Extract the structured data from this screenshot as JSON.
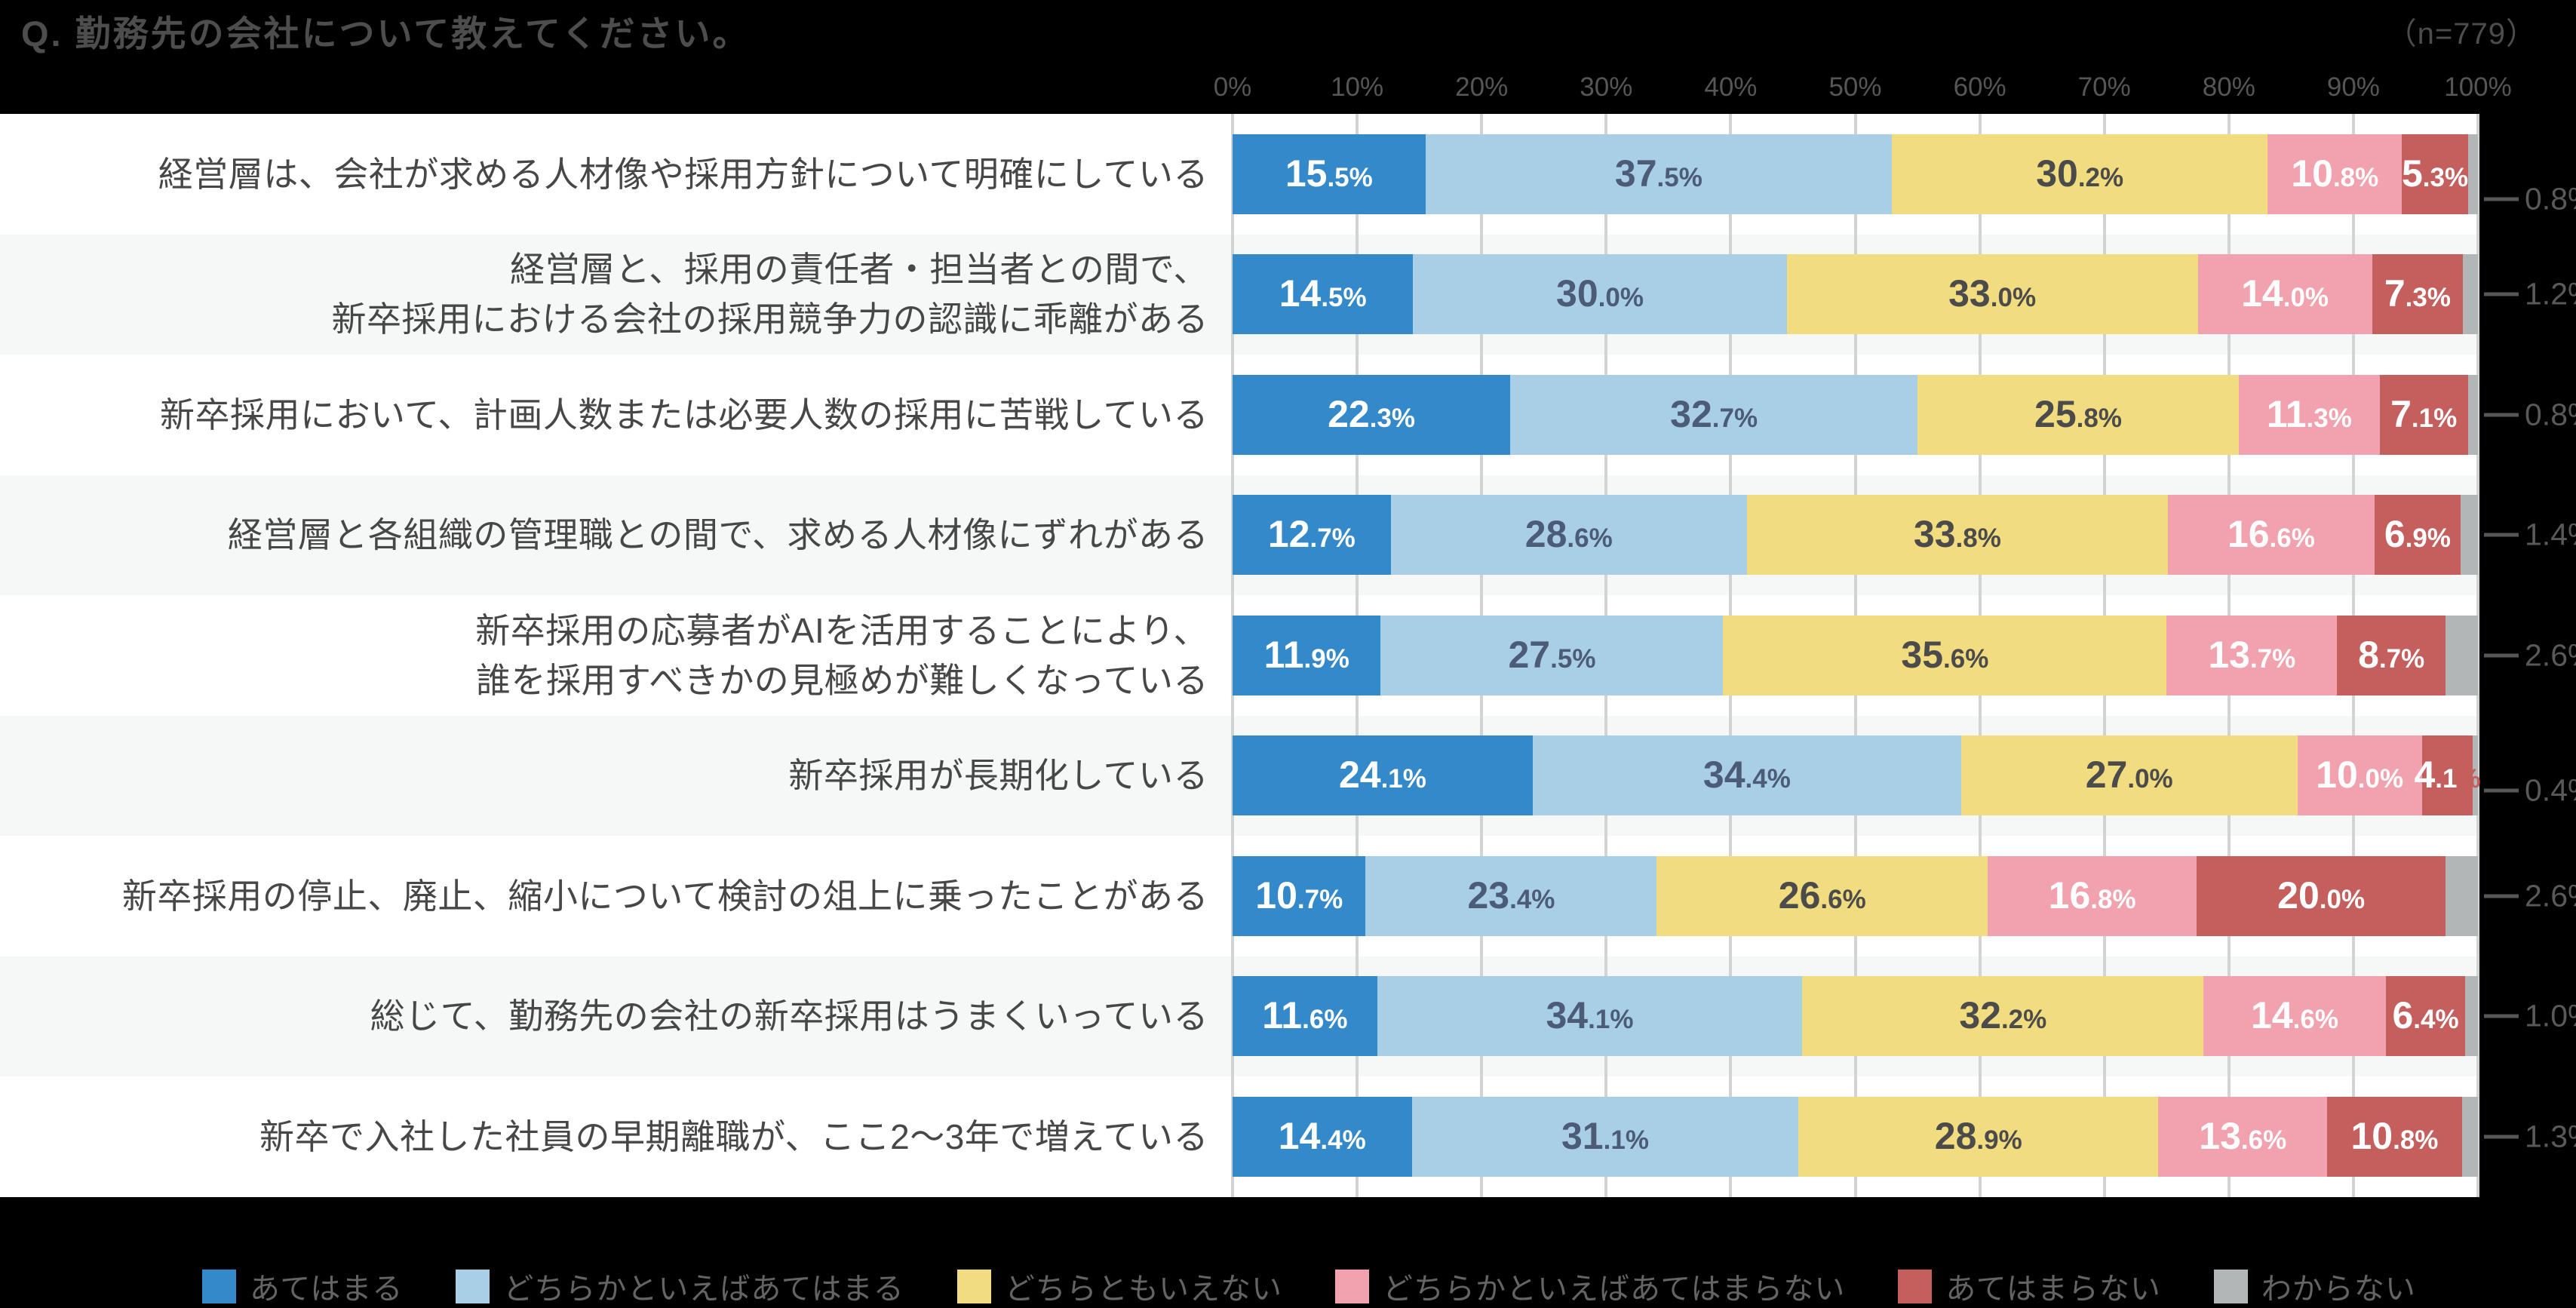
{
  "title": "Q. 勤務先の会社について教えてください。",
  "sample_size_label": "（n=779）",
  "axis": {
    "ticks": [
      "0%",
      "10%",
      "20%",
      "30%",
      "40%",
      "50%",
      "60%",
      "70%",
      "80%",
      "90%",
      "100%"
    ]
  },
  "colors": {
    "background": "#000000",
    "stripe": "#F6F7F7",
    "gridline": "#D2D4D4",
    "title_text": "#4D4D4D",
    "axis_text": "#565656",
    "row_label_text": "#474747",
    "leader_text": "#595959",
    "legend_text": "#646464"
  },
  "chart_data": {
    "type": "bar",
    "stacked": true,
    "orientation": "horizontal",
    "unit": "%",
    "xlim": [
      0,
      100
    ],
    "grid": true,
    "legend_position": "bottom",
    "title": "Q. 勤務先の会社について教えてください。",
    "sample_size": 779,
    "categories": [
      "経営層は、会社が求める人材像や採用方針について明確にしている",
      "経営層と、採用の責任者・担当者との間で、\n新卒採用における会社の採用競争力の認識に乖離がある",
      "新卒採用において、計画人数または必要人数の採用に苦戦している",
      "経営層と各組織の管理職との間で、求める人材像にずれがある",
      "新卒採用の応募者がAIを活用することにより、\n誰を採用すべきかの見極めが難しくなっている",
      "新卒採用が長期化している",
      "新卒採用の停止、廃止、縮小について検討の俎上に乗ったことがある",
      "総じて、勤務先の会社の新卒採用はうまくいっている",
      "新卒で入社した社員の早期離職が、ここ2〜3年で増えている"
    ],
    "series": [
      {
        "name": "あてはまる",
        "color": "#3389C9",
        "label_color": "#FFFFFF",
        "values": [
          15.5,
          14.5,
          22.3,
          12.7,
          11.9,
          24.1,
          10.7,
          11.6,
          14.4
        ]
      },
      {
        "name": "どちらかといえばあてはまる",
        "color": "#A9CFE7",
        "label_color": "#4C5C76",
        "values": [
          37.5,
          30.0,
          32.7,
          28.6,
          27.5,
          34.4,
          23.4,
          34.1,
          31.1
        ]
      },
      {
        "name": "どちらともいえない",
        "color": "#F2DC80",
        "label_color": "#4B4B4B",
        "values": [
          30.2,
          33.0,
          25.8,
          33.8,
          35.6,
          27.0,
          26.6,
          32.2,
          28.9
        ]
      },
      {
        "name": "どちらかといえばあてはまらない",
        "color": "#F1A2AE",
        "label_color": "#FFFFFF",
        "values": [
          10.8,
          14.0,
          11.3,
          16.6,
          13.7,
          10.0,
          16.8,
          14.6,
          13.6
        ]
      },
      {
        "name": "あてはまらない",
        "color": "#C45F5D",
        "label_color": "#FFFFFF",
        "values": [
          5.3,
          7.3,
          7.1,
          6.9,
          8.7,
          4.1,
          20.0,
          6.4,
          10.8
        ]
      },
      {
        "name": "わからない",
        "color": "#B3B6B6",
        "label_color": null,
        "label_outside": true,
        "values": [
          0.8,
          1.2,
          0.8,
          1.4,
          2.6,
          0.4,
          2.6,
          1.0,
          1.3
        ]
      }
    ]
  }
}
